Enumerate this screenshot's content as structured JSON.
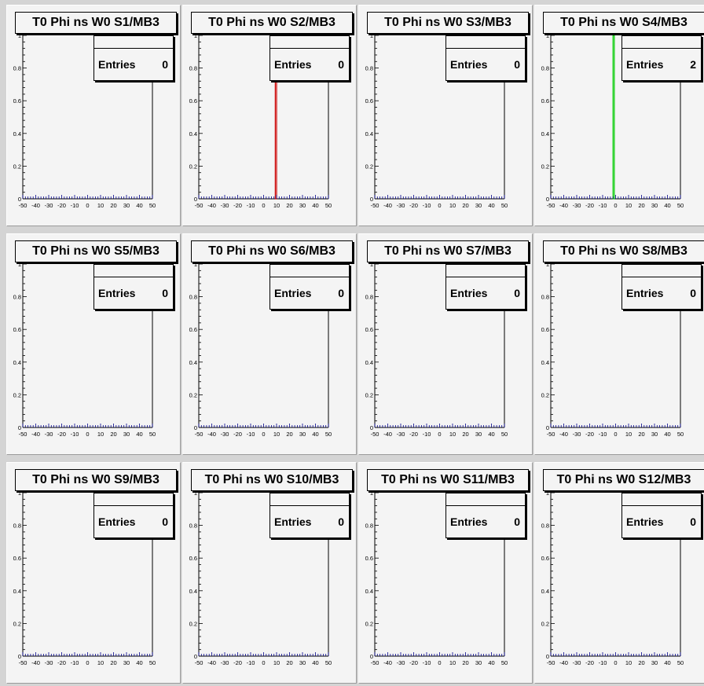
{
  "canvas": {
    "background": "#d4d4d4",
    "pad_background": "#f4f4f4"
  },
  "common": {
    "stats_name": "",
    "entries_label": "Entries",
    "x_ticks": [
      "-50",
      "-40",
      "-30",
      "-20",
      "-10",
      "0",
      "10",
      "20",
      "30",
      "40",
      "50"
    ],
    "y_ticks": [
      "0",
      "0.2",
      "0.4",
      "0.6",
      "0.8",
      "1"
    ],
    "axis_color": "#000000",
    "minor_tick_color": "#00008b"
  },
  "chart_data": [
    {
      "type": "bar",
      "title": "T0 Phi ns W0 S1/MB3",
      "entries": "0",
      "xlim": [
        -50,
        50
      ],
      "ylim": [
        0,
        1
      ],
      "bins": [],
      "line_color": ""
    },
    {
      "type": "bar",
      "title": "T0 Phi ns W0 S2/MB3",
      "entries": "0",
      "xlim": [
        -50,
        50
      ],
      "ylim": [
        0,
        1
      ],
      "bins": [
        {
          "x0": 9,
          "x1": 10,
          "y": 1
        }
      ],
      "line_color": "#cc0000"
    },
    {
      "type": "bar",
      "title": "T0 Phi ns W0 S3/MB3",
      "entries": "0",
      "xlim": [
        -50,
        50
      ],
      "ylim": [
        0,
        1
      ],
      "bins": [],
      "line_color": ""
    },
    {
      "type": "bar",
      "title": "T0 Phi ns W0 S4/MB3",
      "entries": "2",
      "xlim": [
        -50,
        50
      ],
      "ylim": [
        0,
        1
      ],
      "bins": [
        {
          "x0": -2,
          "x1": -1,
          "y": 1
        }
      ],
      "line_color": "#00cc00"
    },
    {
      "type": "bar",
      "title": "T0 Phi ns W0 S5/MB3",
      "entries": "0",
      "xlim": [
        -50,
        50
      ],
      "ylim": [
        0,
        1
      ],
      "bins": [],
      "line_color": ""
    },
    {
      "type": "bar",
      "title": "T0 Phi ns W0 S6/MB3",
      "entries": "0",
      "xlim": [
        -50,
        50
      ],
      "ylim": [
        0,
        1
      ],
      "bins": [],
      "line_color": ""
    },
    {
      "type": "bar",
      "title": "T0 Phi ns W0 S7/MB3",
      "entries": "0",
      "xlim": [
        -50,
        50
      ],
      "ylim": [
        0,
        1
      ],
      "bins": [],
      "line_color": ""
    },
    {
      "type": "bar",
      "title": "T0 Phi ns W0 S8/MB3",
      "entries": "0",
      "xlim": [
        -50,
        50
      ],
      "ylim": [
        0,
        1
      ],
      "bins": [],
      "line_color": ""
    },
    {
      "type": "bar",
      "title": "T0 Phi ns W0 S9/MB3",
      "entries": "0",
      "xlim": [
        -50,
        50
      ],
      "ylim": [
        0,
        1
      ],
      "bins": [],
      "line_color": ""
    },
    {
      "type": "bar",
      "title": "T0 Phi ns W0 S10/MB3",
      "entries": "0",
      "xlim": [
        -50,
        50
      ],
      "ylim": [
        0,
        1
      ],
      "bins": [],
      "line_color": ""
    },
    {
      "type": "bar",
      "title": "T0 Phi ns W0 S11/MB3",
      "entries": "0",
      "xlim": [
        -50,
        50
      ],
      "ylim": [
        0,
        1
      ],
      "bins": [],
      "line_color": ""
    },
    {
      "type": "bar",
      "title": "T0 Phi ns W0 S12/MB3",
      "entries": "0",
      "xlim": [
        -50,
        50
      ],
      "ylim": [
        0,
        1
      ],
      "bins": [],
      "line_color": ""
    }
  ]
}
